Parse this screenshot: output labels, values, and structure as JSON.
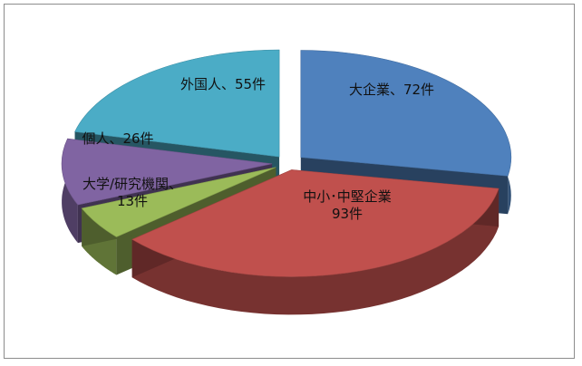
{
  "chart_data": {
    "type": "pie",
    "style": "3d-exploded",
    "unit": "件",
    "slices": [
      {
        "name": "大企業",
        "value": 72,
        "color": "#4f81bd",
        "label_lines": [
          "大企業、72件"
        ]
      },
      {
        "name": "中小・中堅企業",
        "value": 93,
        "color": "#c0504d",
        "label_lines": [
          "中小･中堅企業",
          "93件"
        ]
      },
      {
        "name": "大学/研究機関",
        "value": 13,
        "color": "#9bbb59",
        "label_lines": [
          "大学/研究機関、",
          "13件"
        ]
      },
      {
        "name": "個人",
        "value": 26,
        "color": "#8064a2",
        "label_lines": [
          "個人、26件"
        ]
      },
      {
        "name": "外国人",
        "value": 55,
        "color": "#4bacc6",
        "label_lines": [
          "外国人、55件"
        ]
      }
    ],
    "legend": "none",
    "data_labels": "inside"
  }
}
